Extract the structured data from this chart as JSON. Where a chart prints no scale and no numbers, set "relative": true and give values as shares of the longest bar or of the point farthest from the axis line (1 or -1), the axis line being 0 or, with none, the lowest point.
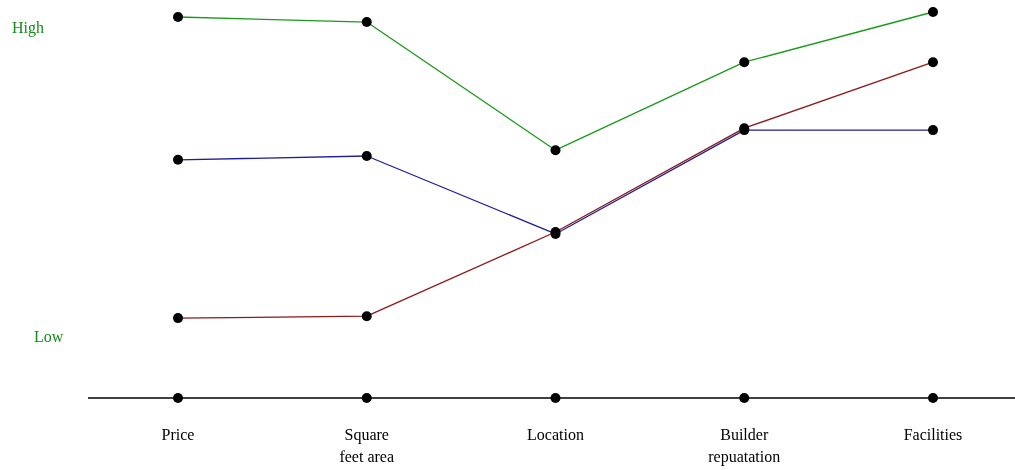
{
  "chart_data": {
    "type": "line",
    "relative": true,
    "marker": "circle",
    "line_style": "solid",
    "categories": [
      "Price",
      "Square feet area",
      "Location",
      "Builder repuatation",
      "Facilities"
    ],
    "series": [
      {
        "color": "#1a9a1a",
        "values": [
          0.987,
          0.974,
          0.642,
          0.87,
          1
        ]
      },
      {
        "color": "#1f1f9a",
        "values": [
          0.617,
          0.627,
          0.425,
          0.694,
          0.694
        ]
      },
      {
        "color": "#8b1a1a",
        "values": [
          0.207,
          0.212,
          0.43,
          0.699,
          0.87
        ]
      },
      {
        "type": "scatter",
        "color": "#000000",
        "values": [
          0,
          0,
          0,
          0,
          0
        ]
      }
    ],
    "annotations": [
      "High",
      "Low"
    ]
  }
}
